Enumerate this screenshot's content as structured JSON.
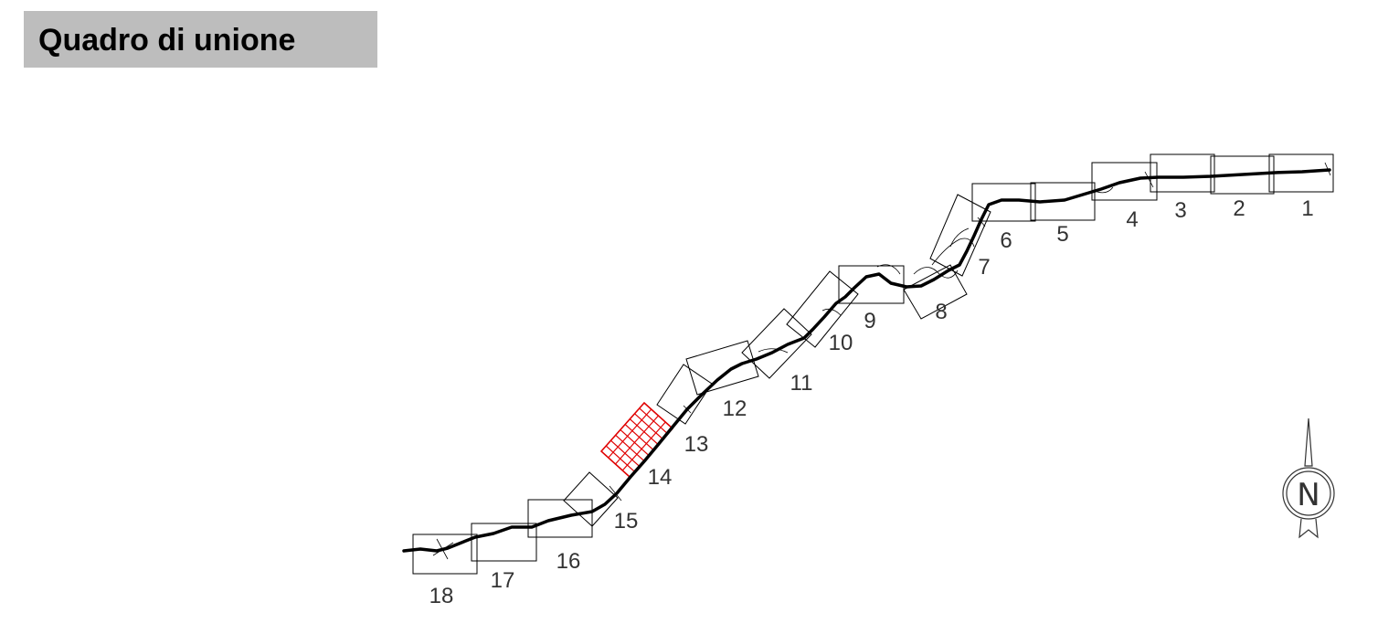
{
  "title": "Quadro di unione",
  "highlight_color": "#e00000",
  "selected_sheet": "14",
  "sheets": [
    {
      "id": "1",
      "label": "1"
    },
    {
      "id": "2",
      "label": "2"
    },
    {
      "id": "3",
      "label": "3"
    },
    {
      "id": "4",
      "label": "4"
    },
    {
      "id": "5",
      "label": "5"
    },
    {
      "id": "6",
      "label": "6"
    },
    {
      "id": "7",
      "label": "7"
    },
    {
      "id": "8",
      "label": "8"
    },
    {
      "id": "9",
      "label": "9"
    },
    {
      "id": "10",
      "label": "10"
    },
    {
      "id": "11",
      "label": "11"
    },
    {
      "id": "12",
      "label": "12"
    },
    {
      "id": "13",
      "label": "13"
    },
    {
      "id": "14",
      "label": "14"
    },
    {
      "id": "15",
      "label": "15"
    },
    {
      "id": "16",
      "label": "16"
    },
    {
      "id": "17",
      "label": "17"
    },
    {
      "id": "18",
      "label": "18"
    }
  ],
  "compass": {
    "label": "N",
    "icon": "north-arrow-icon"
  }
}
